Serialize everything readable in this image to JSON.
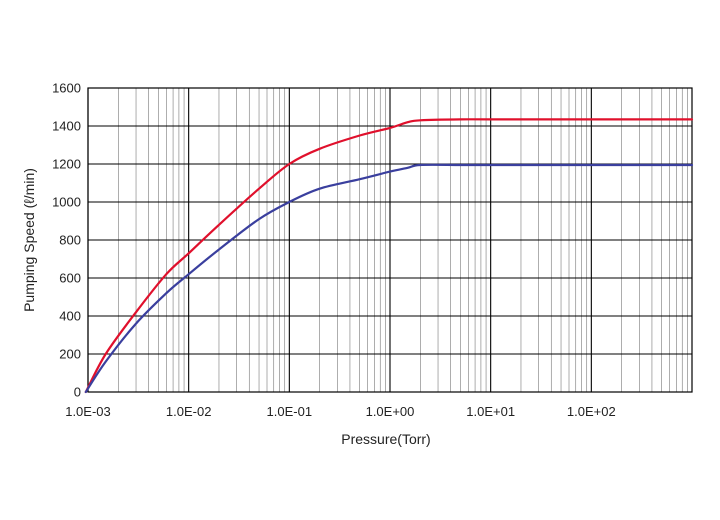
{
  "chart_data": {
    "type": "line",
    "xlabel": "Pressure(Torr)",
    "ylabel": "Pumping Speed (ℓ/min)",
    "x_scale": "log",
    "xlim": [
      0.001,
      1000
    ],
    "ylim": [
      0,
      1600
    ],
    "x_tick_values": [
      0.001,
      0.01,
      0.1,
      1,
      10,
      100
    ],
    "x_tick_labels": [
      "1.0E-03",
      "1.0E-02",
      "1.0E-01",
      "1.0E+00",
      "1.0E+01",
      "1.0E+02"
    ],
    "y_tick_values": [
      0,
      200,
      400,
      600,
      800,
      1000,
      1200,
      1400,
      1600
    ],
    "y_tick_labels": [
      "0",
      "200",
      "400",
      "600",
      "800",
      "1000",
      "1200",
      "1400",
      "1600"
    ],
    "grid": true,
    "series": [
      {
        "color": "#e0102c",
        "x": [
          0.00095,
          0.0015,
          0.003,
          0.006,
          0.01,
          0.02,
          0.05,
          0.1,
          0.2,
          0.5,
          1,
          1.5,
          2,
          5,
          10,
          100,
          1000
        ],
        "y": [
          0,
          200,
          420,
          620,
          730,
          880,
          1070,
          1200,
          1280,
          1350,
          1390,
          1420,
          1430,
          1435,
          1435,
          1435,
          1435
        ]
      },
      {
        "color": "#3a3f9e",
        "x": [
          0.00095,
          0.0015,
          0.003,
          0.006,
          0.01,
          0.02,
          0.05,
          0.1,
          0.2,
          0.5,
          1,
          1.5,
          2,
          5,
          10,
          100,
          1000
        ],
        "y": [
          0,
          160,
          360,
          520,
          620,
          750,
          910,
          1000,
          1070,
          1120,
          1160,
          1180,
          1195,
          1195,
          1195,
          1195,
          1195
        ]
      }
    ]
  }
}
